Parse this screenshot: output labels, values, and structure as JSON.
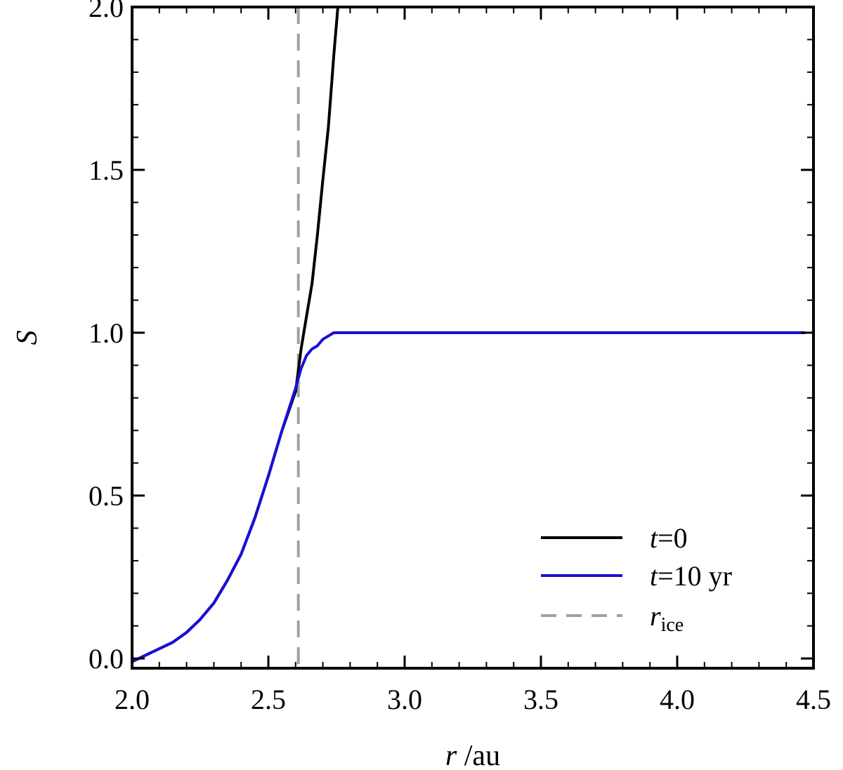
{
  "chart_data": {
    "type": "line",
    "xlabel_var": "r",
    "xlabel_unit": " /au",
    "ylabel": "S",
    "xlim": [
      2.0,
      4.5
    ],
    "ylim": [
      -0.03,
      2.0
    ],
    "x_ticks": [
      "2.0",
      "2.5",
      "3.0",
      "3.5",
      "4.0",
      "4.5"
    ],
    "y_ticks": [
      "0.0",
      "0.5",
      "1.0",
      "1.5",
      "2.0"
    ],
    "grid": false,
    "legend_position": "bottom-right",
    "series": [
      {
        "name_var": "t",
        "name_rest": "=0",
        "color": "#000000",
        "style": "solid",
        "x": [
          2.0,
          2.05,
          2.1,
          2.15,
          2.2,
          2.25,
          2.3,
          2.35,
          2.4,
          2.45,
          2.5,
          2.55,
          2.6,
          2.62,
          2.64,
          2.66,
          2.68,
          2.7,
          2.72,
          2.74,
          2.76
        ],
        "y": [
          -0.01,
          0.01,
          0.03,
          0.05,
          0.08,
          0.12,
          0.17,
          0.24,
          0.32,
          0.43,
          0.56,
          0.7,
          0.82,
          0.95,
          1.05,
          1.15,
          1.3,
          1.47,
          1.63,
          1.85,
          2.05
        ]
      },
      {
        "name_var": "t",
        "name_rest": "=10 yr",
        "color": "#1a0fd6",
        "style": "solid",
        "x": [
          2.0,
          2.05,
          2.1,
          2.15,
          2.2,
          2.25,
          2.3,
          2.35,
          2.4,
          2.45,
          2.5,
          2.55,
          2.6,
          2.62,
          2.64,
          2.66,
          2.68,
          2.7,
          2.72,
          2.74,
          2.76,
          2.78,
          2.8,
          3.0,
          3.25,
          3.5,
          3.75,
          4.0,
          4.25,
          4.47
        ],
        "y": [
          -0.01,
          0.01,
          0.03,
          0.05,
          0.08,
          0.12,
          0.17,
          0.24,
          0.32,
          0.43,
          0.56,
          0.7,
          0.83,
          0.89,
          0.93,
          0.95,
          0.96,
          0.98,
          0.99,
          1.0,
          1.0,
          1.0,
          1.0,
          1.0,
          1.0,
          1.0,
          1.0,
          1.0,
          1.0,
          1.0
        ]
      }
    ],
    "reference_lines": [
      {
        "name_var": "r",
        "name_sub": "ice",
        "x": 2.61,
        "color": "#a0a0a0",
        "style": "dashed"
      }
    ]
  }
}
